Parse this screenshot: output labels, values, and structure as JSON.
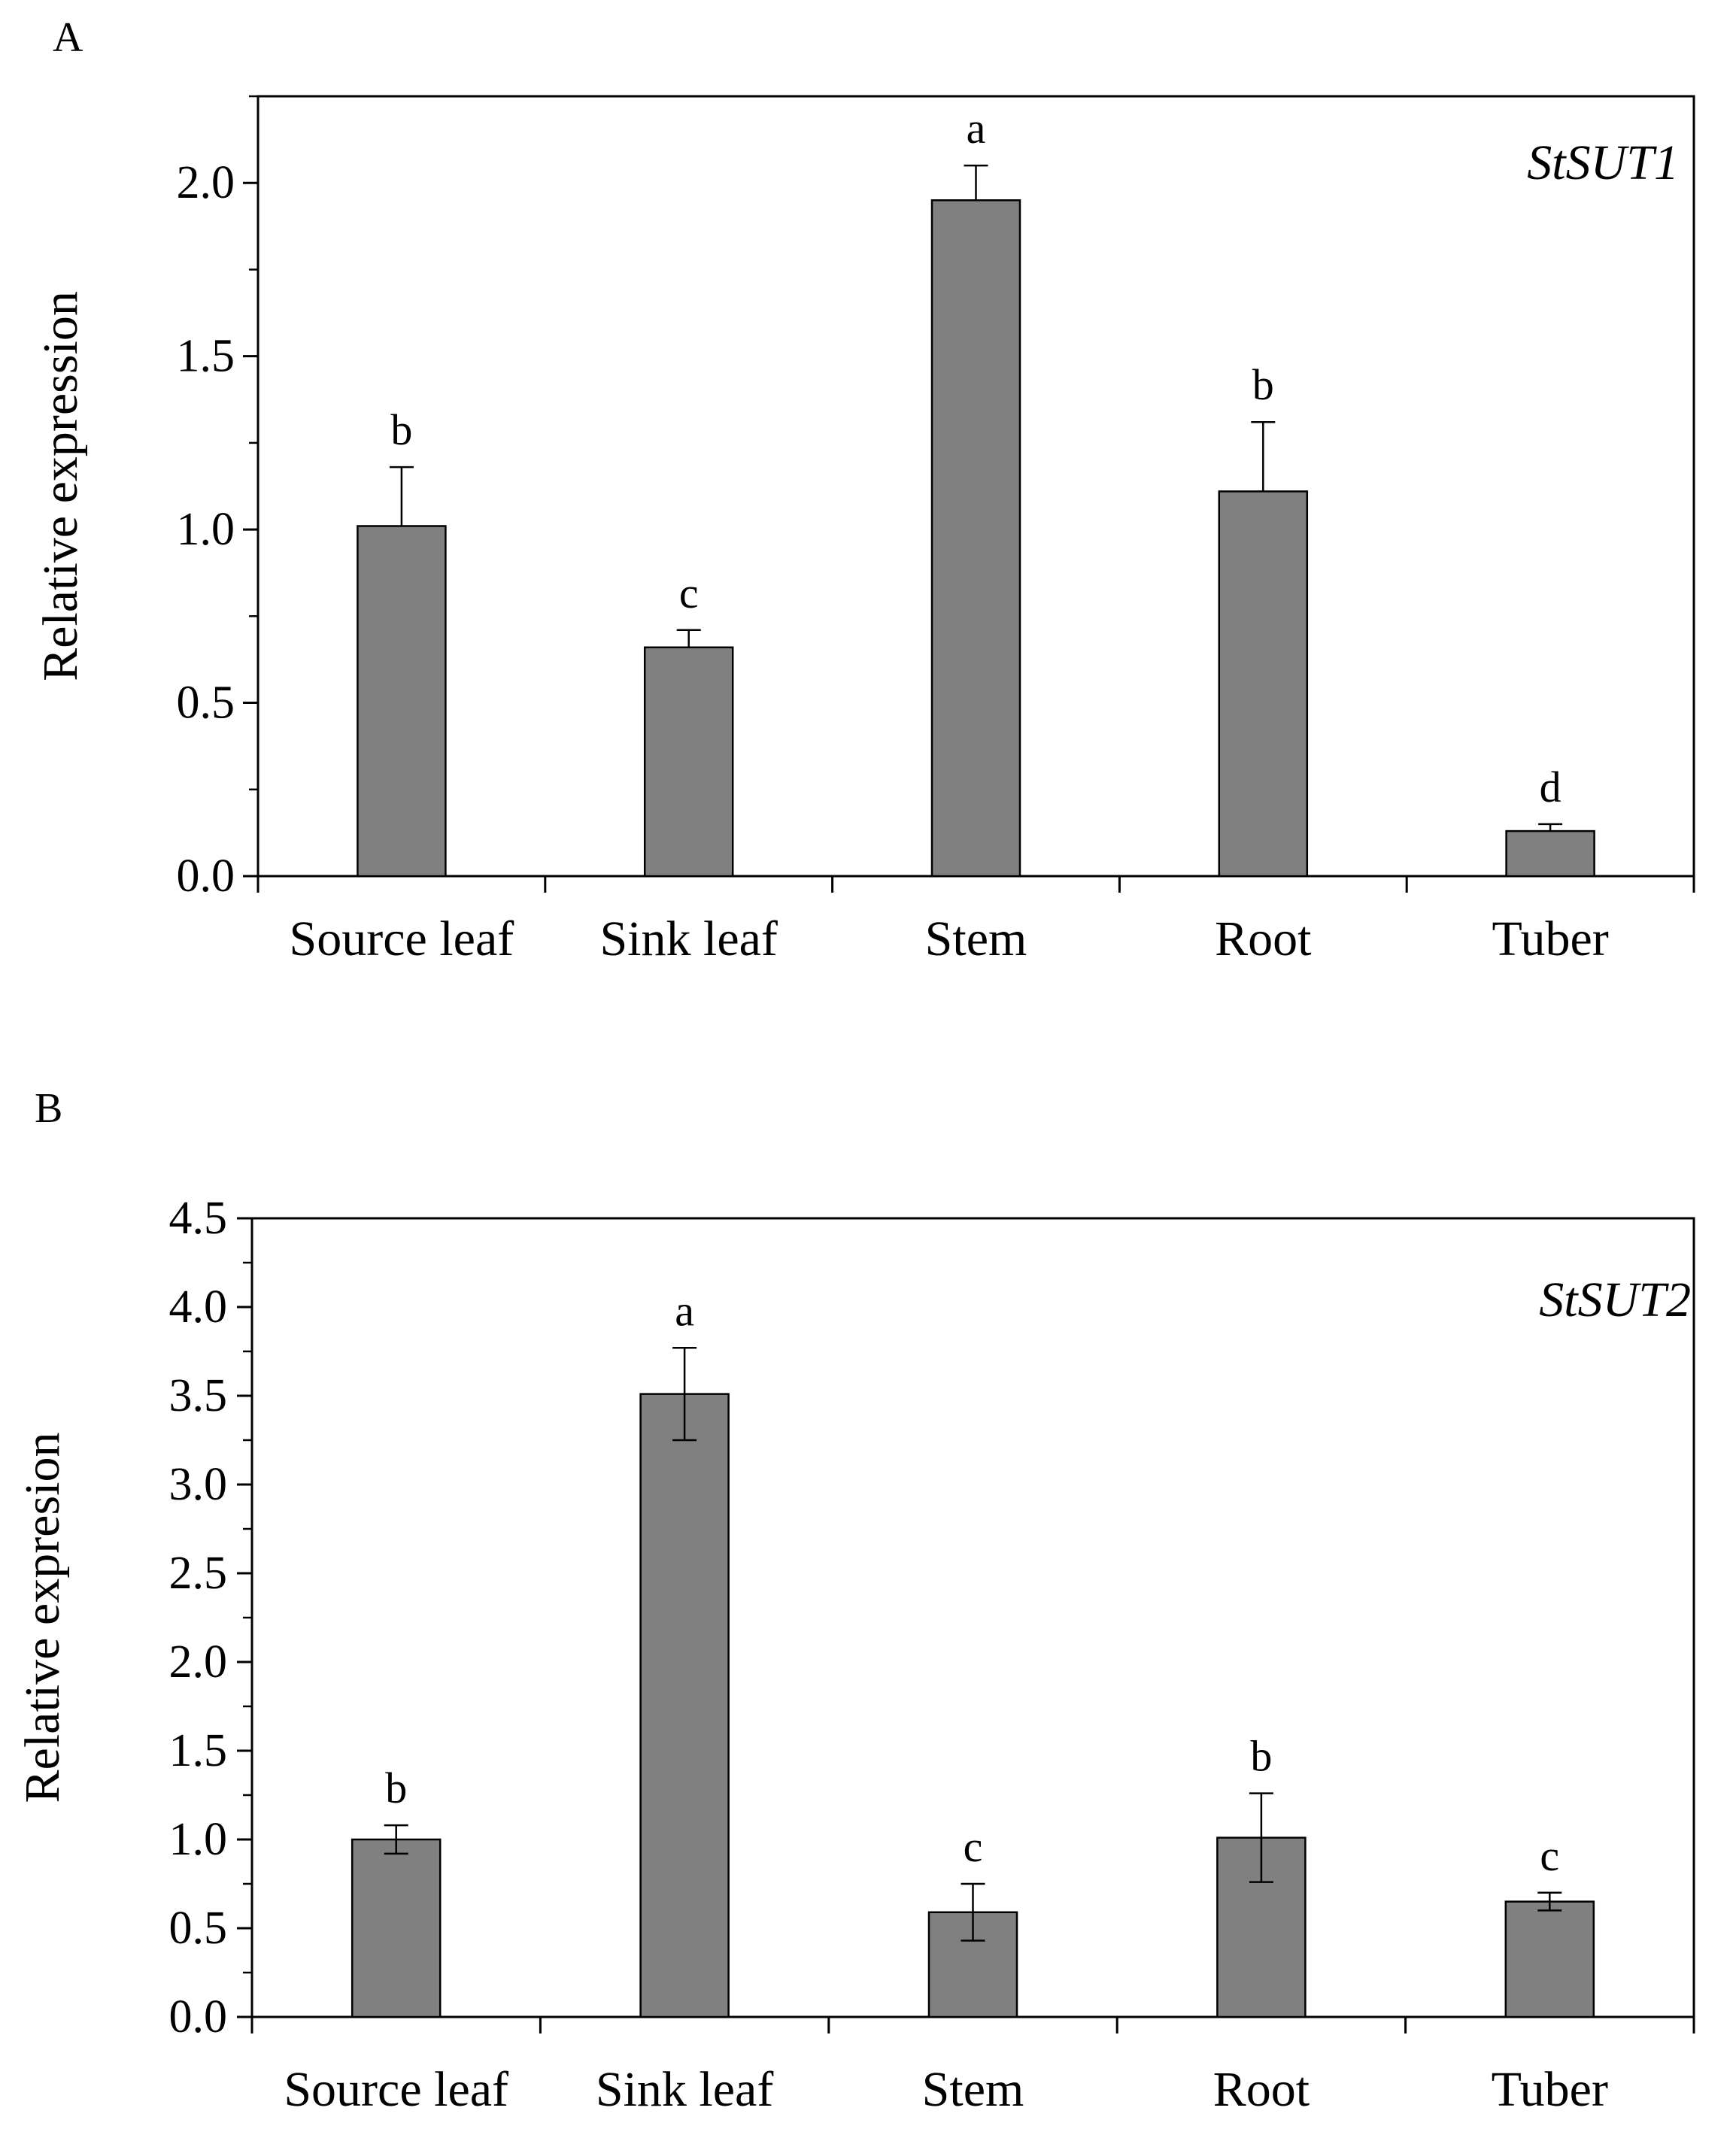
{
  "chart_data": [
    {
      "panel": "A",
      "type": "bar",
      "gene": "StSUT1",
      "ylabel": "Relative expression",
      "xlabel": "",
      "categories": [
        "Source leaf",
        "Sink leaf",
        "Stem",
        "Root",
        "Tuber"
      ],
      "values": [
        1.01,
        0.66,
        1.95,
        1.11,
        0.13
      ],
      "errors": [
        0.17,
        0.05,
        0.1,
        0.2,
        0.02
      ],
      "significance": [
        "b",
        "c",
        "a",
        "b",
        "d"
      ],
      "ylim": [
        0,
        2.25
      ],
      "yticks": [
        "0.0",
        "0.5",
        "1.0",
        "1.5",
        "2.0"
      ],
      "ytick_values": [
        0,
        0.5,
        1.0,
        1.5,
        2.0
      ],
      "minor_step": 0.25,
      "grid": false,
      "bar_color": "#808080"
    },
    {
      "panel": "B",
      "type": "bar",
      "gene": "StSUT2",
      "ylabel": "Relative expresion",
      "xlabel": "",
      "categories": [
        "Source leaf",
        "Sink leaf",
        "Stem",
        "Root",
        "Tuber"
      ],
      "values": [
        1.0,
        3.51,
        0.59,
        1.01,
        0.65
      ],
      "errors": [
        0.08,
        0.26,
        0.16,
        0.25,
        0.05
      ],
      "significance": [
        "b",
        "a",
        "c",
        "b",
        "c"
      ],
      "ylim": [
        0,
        4.5
      ],
      "yticks": [
        "0.0",
        "0.5",
        "1.0",
        "1.5",
        "2.0",
        "2.5",
        "3.0",
        "3.5",
        "4.0",
        "4.5"
      ],
      "ytick_values": [
        0,
        0.5,
        1.0,
        1.5,
        2.0,
        2.5,
        3.0,
        3.5,
        4.0,
        4.5
      ],
      "minor_step": 0.25,
      "grid": false,
      "bar_color": "#808080"
    }
  ]
}
